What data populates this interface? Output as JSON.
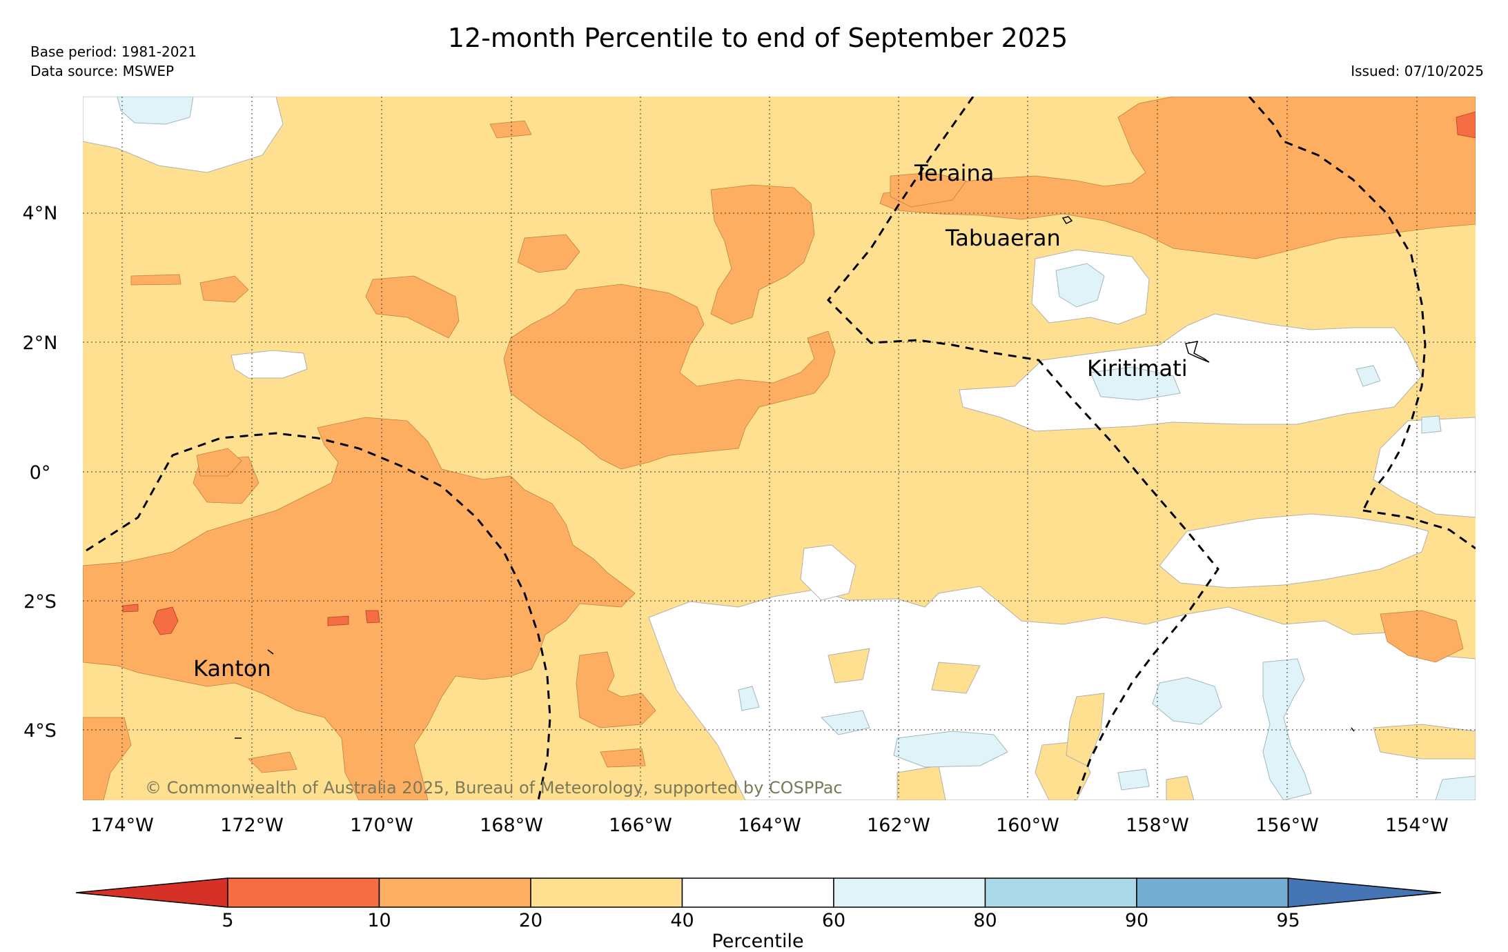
{
  "title": "12-month Percentile to end of September 2025",
  "meta": {
    "base_period": "Base period: 1981-2021",
    "data_source": "Data source: MSWEP",
    "issued": "Issued: 07/10/2025"
  },
  "copyright": "© Commonwealth of Australia 2025, Bureau of Meteorology, supported by COSPPac",
  "axes": {
    "lon_ticks": [
      "174°W",
      "172°W",
      "170°W",
      "168°W",
      "166°W",
      "164°W",
      "162°W",
      "160°W",
      "158°W",
      "156°W",
      "154°W"
    ],
    "lat_ticks": [
      "4°N",
      "2°N",
      "0°",
      "2°S",
      "4°S"
    ]
  },
  "places": [
    "Teraina",
    "Tabuaeran",
    "Kiritimati",
    "Kanton"
  ],
  "legend": {
    "title": "Percentile",
    "tick_labels": [
      "5",
      "10",
      "20",
      "40",
      "60",
      "80",
      "90",
      "95"
    ],
    "colors": [
      "#d73027",
      "#f46d43",
      "#fdae61",
      "#fee090",
      "#ffffff",
      "#e0f3f8",
      "#abd9e9",
      "#74add1",
      "#4575b4"
    ]
  },
  "colors": {
    "p5_10": "#f46d43",
    "p10_20": "#fdae61",
    "p20_40": "#fee090",
    "p40_60": "#ffffff",
    "p60_80": "#e0f3f8",
    "p80_90": "#abd9e9"
  }
}
